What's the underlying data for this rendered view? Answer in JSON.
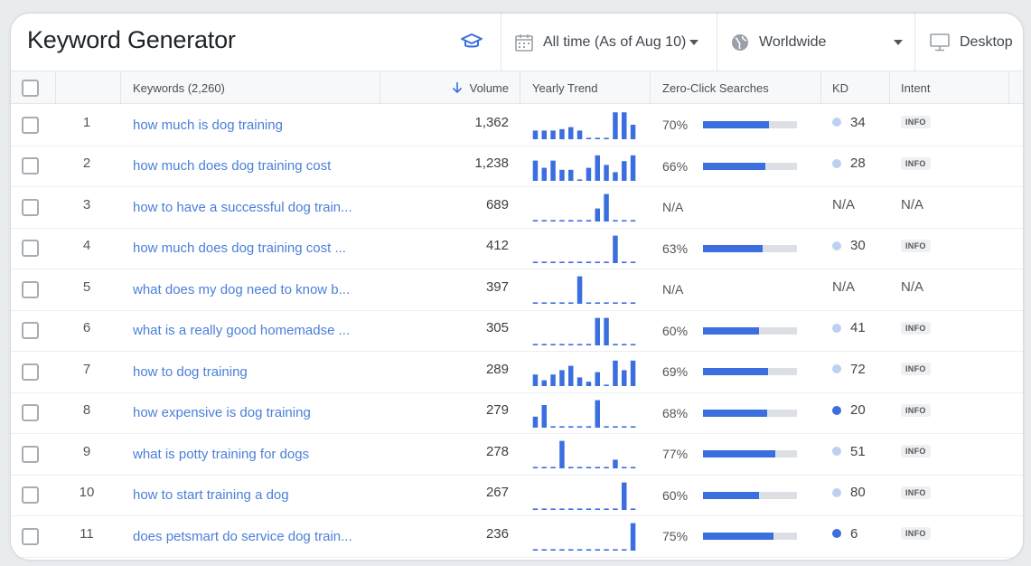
{
  "app": {
    "title": "Keyword Generator"
  },
  "toolbar": {
    "date_filter": "All time (As of Aug 10)",
    "location": "Worldwide",
    "device": "Desktop"
  },
  "table": {
    "columns": {
      "keywords": "Keywords (2,260)",
      "volume": "Volume",
      "trend": "Yearly Trend",
      "zero_click": "Zero-Click Searches",
      "kd": "KD",
      "intent": "Intent"
    },
    "rows": [
      {
        "num": "1",
        "keyword": "how much is dog training",
        "volume": "1,362",
        "trend": [
          0.3,
          0.3,
          0.3,
          0.35,
          0.42,
          0.3,
          0.05,
          0.05,
          0.05,
          0.93,
          0.93,
          0.5
        ],
        "zero_click": "70%",
        "zc_value": 0.7,
        "kd": "34",
        "kd_color": "#bcd1f1",
        "intent": "INFO"
      },
      {
        "num": "2",
        "keyword": "how much does dog training cost",
        "volume": "1,238",
        "trend": [
          0.7,
          0.45,
          0.7,
          0.38,
          0.38,
          0.05,
          0.45,
          0.88,
          0.55,
          0.3,
          0.68,
          0.88
        ],
        "zero_click": "66%",
        "zc_value": 0.66,
        "kd": "28",
        "kd_color": "#bcd1f1",
        "intent": "INFO"
      },
      {
        "num": "3",
        "keyword": "how to have a successful dog train...",
        "volume": "689",
        "trend": [
          0.05,
          0.05,
          0.05,
          0.05,
          0.05,
          0.05,
          0.05,
          0.45,
          0.95,
          0.05,
          0.05,
          0.05
        ],
        "zero_click": "N/A",
        "zc_value": null,
        "kd": "N/A",
        "kd_color": null,
        "intent": "N/A"
      },
      {
        "num": "4",
        "keyword": "how much does dog training cost ...",
        "volume": "412",
        "trend": [
          0.05,
          0.05,
          0.05,
          0.05,
          0.05,
          0.05,
          0.05,
          0.05,
          0.05,
          0.95,
          0.05,
          0.05
        ],
        "zero_click": "63%",
        "zc_value": 0.63,
        "kd": "30",
        "kd_color": "#bcd1f1",
        "intent": "INFO"
      },
      {
        "num": "5",
        "keyword": "what does my dog need to know b...",
        "volume": "397",
        "trend": [
          0.05,
          0.05,
          0.05,
          0.05,
          0.05,
          0.95,
          0.05,
          0.05,
          0.05,
          0.05,
          0.05,
          0.05
        ],
        "zero_click": "N/A",
        "zc_value": null,
        "kd": "N/A",
        "kd_color": null,
        "intent": "N/A"
      },
      {
        "num": "6",
        "keyword": "what is a really good homemadse ...",
        "volume": "305",
        "trend": [
          0.05,
          0.05,
          0.05,
          0.05,
          0.05,
          0.05,
          0.05,
          0.95,
          0.95,
          0.05,
          0.05,
          0.05
        ],
        "zero_click": "60%",
        "zc_value": 0.6,
        "kd": "41",
        "kd_color": "#bcd1f1",
        "intent": "INFO"
      },
      {
        "num": "7",
        "keyword": "how to dog training",
        "volume": "289",
        "trend": [
          0.4,
          0.2,
          0.4,
          0.55,
          0.7,
          0.3,
          0.15,
          0.48,
          0.05,
          0.88,
          0.55,
          0.88
        ],
        "zero_click": "69%",
        "zc_value": 0.69,
        "kd": "72",
        "kd_color": "#bcd1f1",
        "intent": "INFO"
      },
      {
        "num": "8",
        "keyword": "how expensive is dog training",
        "volume": "279",
        "trend": [
          0.38,
          0.78,
          0.05,
          0.05,
          0.05,
          0.05,
          0.05,
          0.95,
          0.05,
          0.05,
          0.05,
          0.05
        ],
        "zero_click": "68%",
        "zc_value": 0.68,
        "kd": "20",
        "kd_color": "#3b6fe0",
        "intent": "INFO"
      },
      {
        "num": "9",
        "keyword": "what is potty training for dogs",
        "volume": "278",
        "trend": [
          0.05,
          0.05,
          0.05,
          0.95,
          0.05,
          0.05,
          0.05,
          0.05,
          0.05,
          0.3,
          0.05,
          0.05
        ],
        "zero_click": "77%",
        "zc_value": 0.77,
        "kd": "51",
        "kd_color": "#bcd1f1",
        "intent": "INFO"
      },
      {
        "num": "10",
        "keyword": "how to start training a dog",
        "volume": "267",
        "trend": [
          0.05,
          0.05,
          0.05,
          0.05,
          0.05,
          0.05,
          0.05,
          0.05,
          0.05,
          0.05,
          0.95,
          0.05
        ],
        "zero_click": "60%",
        "zc_value": 0.6,
        "kd": "80",
        "kd_color": "#bcd1f1",
        "intent": "INFO"
      },
      {
        "num": "11",
        "keyword": "does petsmart do service dog train...",
        "volume": "236",
        "trend": [
          0.05,
          0.05,
          0.05,
          0.05,
          0.05,
          0.05,
          0.05,
          0.05,
          0.05,
          0.05,
          0.05,
          0.95
        ],
        "zero_click": "75%",
        "zc_value": 0.75,
        "kd": "6",
        "kd_color": "#3b6fe0",
        "intent": "INFO"
      }
    ]
  }
}
